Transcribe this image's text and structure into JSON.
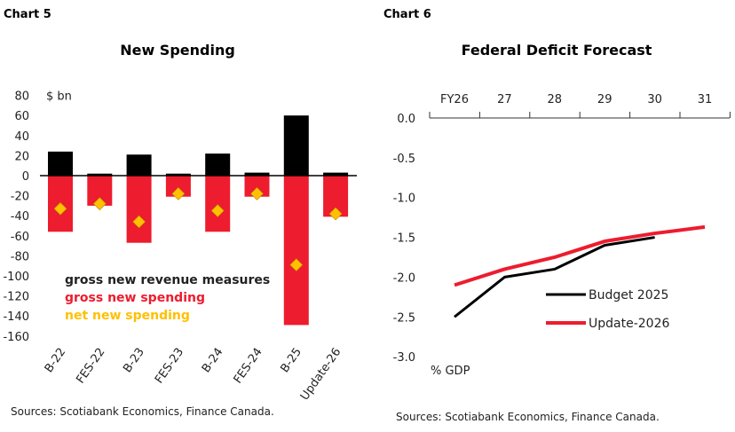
{
  "chart_data": [
    {
      "type": "bar",
      "header": "Chart 5",
      "title": "New Spending",
      "ylabel": "$ bn",
      "ylim": [
        -160,
        80
      ],
      "yticks": [
        80,
        60,
        40,
        20,
        0,
        -20,
        -40,
        -60,
        -80,
        -100,
        -120,
        -140,
        -160
      ],
      "categories": [
        "B-22",
        "FES-22",
        "B-23",
        "FES-23",
        "B-24",
        "FES-24",
        "B-25",
        "Update-26"
      ],
      "series": [
        {
          "name": "gross new revenue measures",
          "kind": "bar",
          "color": "#000000",
          "values": [
            24,
            2,
            21,
            2,
            22,
            3,
            60,
            3
          ]
        },
        {
          "name": "gross new spending",
          "kind": "bar",
          "color": "#ED1C2E",
          "values": [
            -56,
            -30,
            -67,
            -21,
            -56,
            -21,
            -149,
            -41
          ]
        },
        {
          "name": "net new spending",
          "kind": "marker",
          "marker": "diamond",
          "color": "#FFC000",
          "values": [
            -33,
            -28,
            -46,
            -18,
            -35,
            -18,
            -89,
            -38
          ]
        }
      ],
      "legend_placement": "inside-bottom-left",
      "source": "Sources: Scotiabank Economics, Finance Canada."
    },
    {
      "type": "line",
      "header": "Chart 6",
      "title": "Federal Deficit Forecast",
      "ylabel": "% GDP",
      "ylim": [
        -3.0,
        0.0
      ],
      "yticks": [
        "0.0",
        "-0.5",
        "-1.0",
        "-1.5",
        "-2.0",
        "-2.5",
        "-3.0"
      ],
      "x": [
        "FY26",
        "27",
        "28",
        "29",
        "30",
        "31"
      ],
      "x_axis_position": "top",
      "series": [
        {
          "name": "Budget 2025",
          "color": "#000000",
          "values": [
            -2.5,
            -2.0,
            -1.9,
            -1.6,
            -1.5,
            null
          ]
        },
        {
          "name": "Update-2026",
          "color": "#ED1C2E",
          "values": [
            -2.1,
            -1.9,
            -1.75,
            -1.55,
            -1.45,
            -1.37
          ]
        }
      ],
      "legend_placement": "bottom-right",
      "source": "Sources: Scotiabank Economics, Finance Canada."
    }
  ]
}
